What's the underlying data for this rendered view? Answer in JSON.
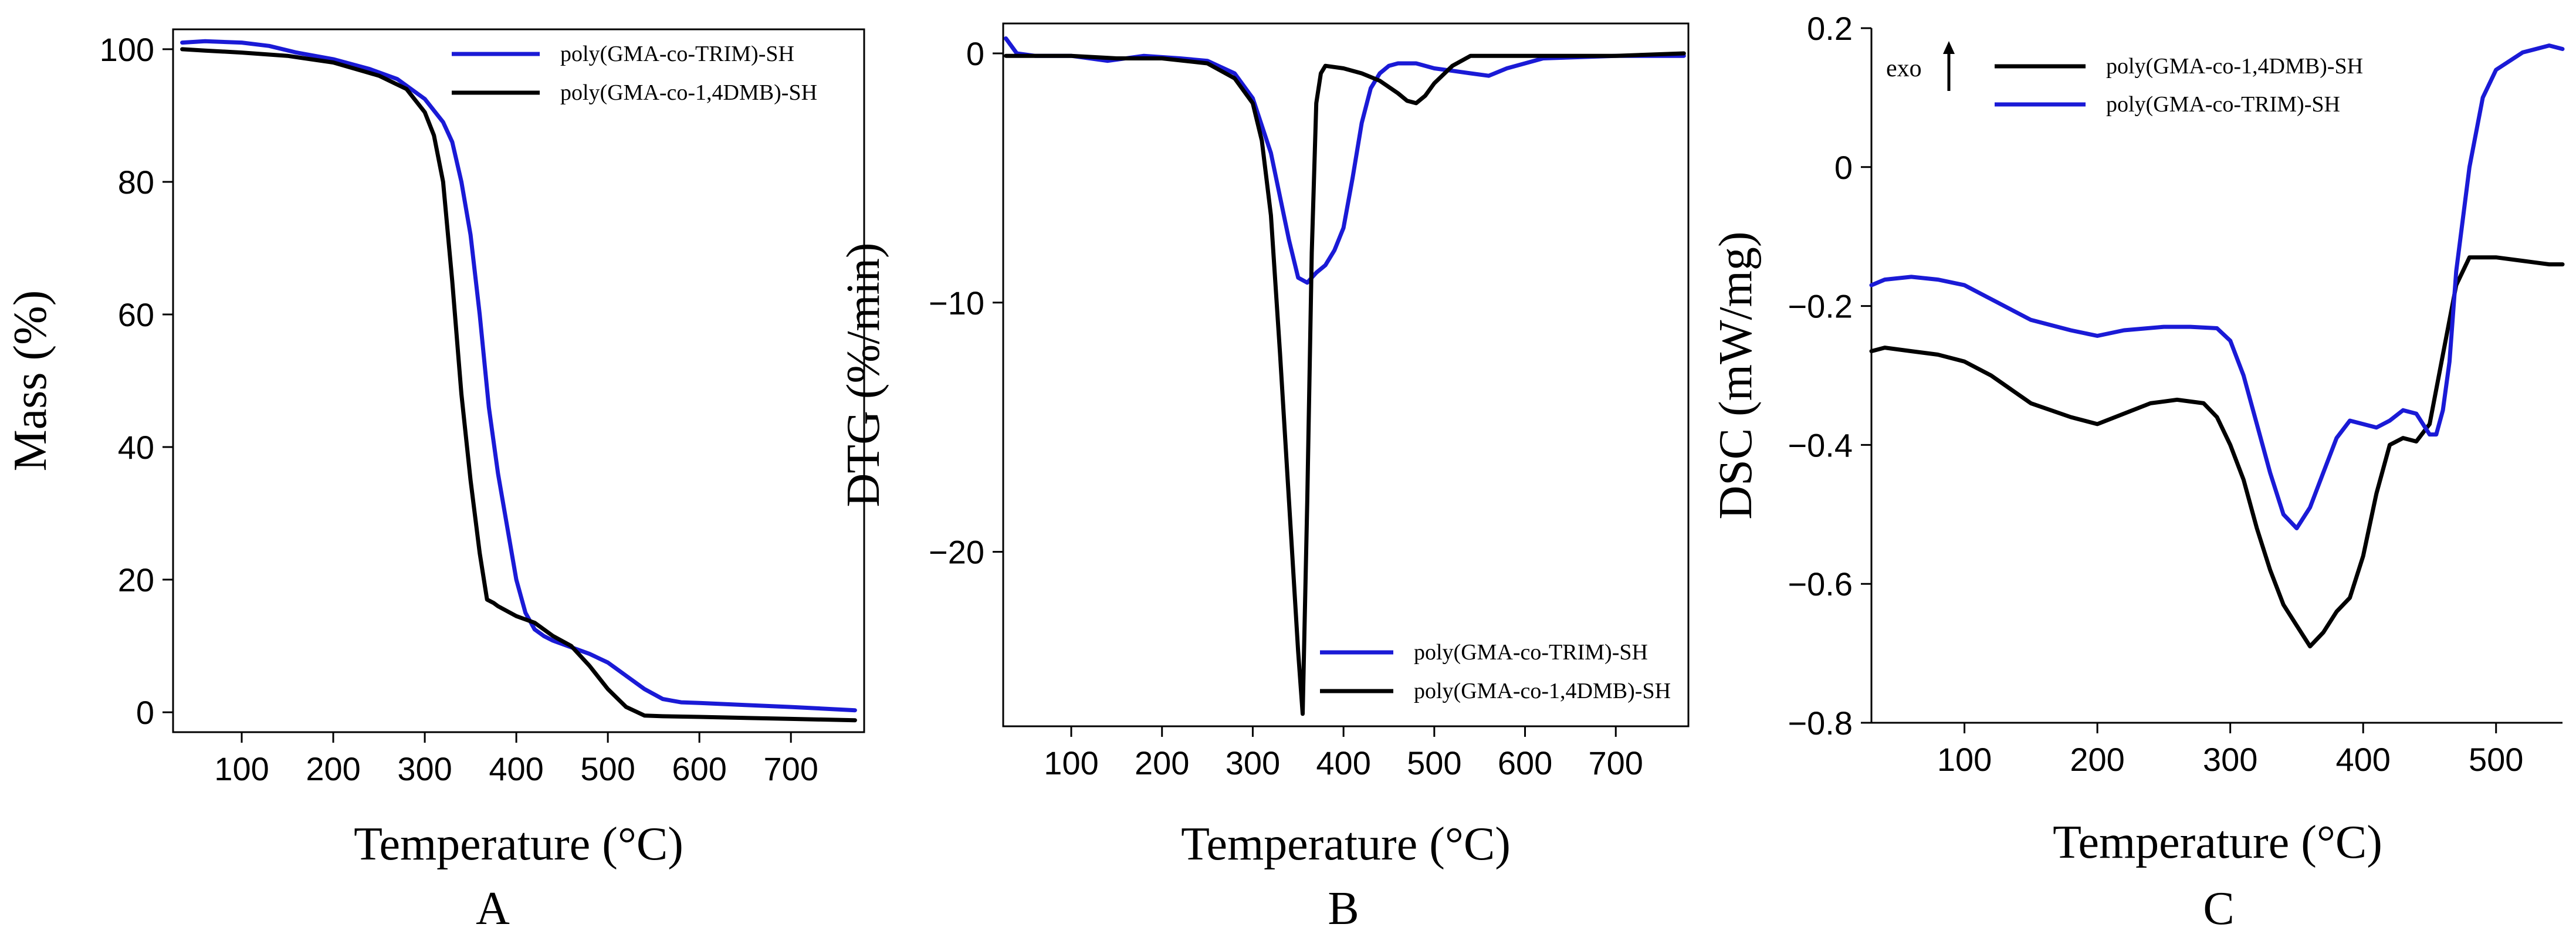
{
  "colors": {
    "trim": "#1a1ad6",
    "dmb": "#000000"
  },
  "chart_data": [
    {
      "type": "line",
      "panel_label": "A",
      "xlabel": "Temperature (°C)",
      "ylabel": "Mass (%)",
      "xlim": [
        25,
        780
      ],
      "ylim": [
        -3,
        103
      ],
      "xticks": [
        100,
        200,
        300,
        400,
        500,
        600,
        700
      ],
      "yticks": [
        0,
        20,
        40,
        60,
        80,
        100
      ],
      "legend_position": "top-right",
      "series": [
        {
          "name": "poly(GMA-co-TRIM)-SH",
          "color_key": "trim",
          "x": [
            35,
            60,
            100,
            130,
            160,
            200,
            240,
            270,
            300,
            320,
            330,
            340,
            350,
            360,
            370,
            380,
            390,
            400,
            410,
            420,
            430,
            440,
            460,
            480,
            500,
            520,
            540,
            560,
            580,
            600,
            650,
            700,
            770
          ],
          "y": [
            101,
            101.2,
            101,
            100.5,
            99.5,
            98.5,
            97,
            95.5,
            92.5,
            89,
            86,
            80,
            72,
            60,
            46,
            36,
            28,
            20,
            15,
            12.5,
            11.5,
            10.8,
            9.8,
            8.8,
            7.5,
            5.5,
            3.5,
            2,
            1.5,
            1.4,
            1.1,
            0.8,
            0.3
          ]
        },
        {
          "name": "poly(GMA-co-1,4DMB)-SH",
          "color_key": "dmb",
          "x": [
            35,
            60,
            100,
            150,
            200,
            250,
            280,
            300,
            310,
            320,
            330,
            340,
            350,
            360,
            368,
            375,
            380,
            400,
            420,
            440,
            460,
            480,
            500,
            520,
            540,
            560,
            600,
            700,
            770
          ],
          "y": [
            100,
            99.8,
            99.5,
            99,
            98,
            96,
            94,
            90.5,
            87,
            80,
            65,
            48,
            35,
            24,
            17,
            16.5,
            16,
            14.5,
            13.5,
            11.5,
            10,
            7,
            3.5,
            0.8,
            -0.5,
            -0.6,
            -0.7,
            -1,
            -1.2
          ]
        }
      ]
    },
    {
      "type": "line",
      "panel_label": "B",
      "xlabel": "Temperature (°C)",
      "ylabel": "DTG (%/min)",
      "xlim": [
        25,
        780
      ],
      "ylim": [
        -27,
        1.2
      ],
      "xticks": [
        100,
        200,
        300,
        400,
        500,
        600,
        700
      ],
      "yticks": [
        0,
        -10,
        -20
      ],
      "ytick_labels": [
        "0",
        "−10",
        "−20"
      ],
      "legend_position": "bottom-right",
      "series": [
        {
          "name": "poly(GMA-co-TRIM)-SH",
          "color_key": "trim",
          "x": [
            28,
            40,
            60,
            100,
            140,
            180,
            220,
            250,
            280,
            300,
            320,
            340,
            350,
            360,
            370,
            380,
            390,
            400,
            410,
            420,
            430,
            440,
            450,
            460,
            480,
            500,
            520,
            540,
            560,
            580,
            620,
            700,
            775
          ],
          "y": [
            0.6,
            0,
            -0.1,
            -0.1,
            -0.3,
            -0.1,
            -0.2,
            -0.3,
            -0.8,
            -1.8,
            -4,
            -7.5,
            -9,
            -9.2,
            -8.8,
            -8.5,
            -7.9,
            -7,
            -5,
            -2.8,
            -1.4,
            -0.8,
            -0.5,
            -0.4,
            -0.4,
            -0.6,
            -0.7,
            -0.8,
            -0.9,
            -0.6,
            -0.2,
            -0.1,
            -0.1
          ]
        },
        {
          "name": "poly(GMA-co-1,4DMB)-SH",
          "color_key": "dmb",
          "x": [
            28,
            60,
            100,
            150,
            200,
            250,
            280,
            300,
            310,
            320,
            330,
            340,
            350,
            355,
            360,
            365,
            370,
            375,
            380,
            400,
            420,
            440,
            460,
            470,
            480,
            490,
            500,
            520,
            540,
            560,
            600,
            700,
            775
          ],
          "y": [
            -0.1,
            -0.1,
            -0.1,
            -0.2,
            -0.2,
            -0.4,
            -1,
            -2,
            -3.5,
            -6.5,
            -12,
            -18,
            -24,
            -26.5,
            -18,
            -8,
            -2,
            -0.8,
            -0.5,
            -0.6,
            -0.8,
            -1.1,
            -1.6,
            -1.9,
            -2,
            -1.7,
            -1.2,
            -0.5,
            -0.1,
            -0.1,
            -0.1,
            -0.1,
            0
          ]
        }
      ]
    },
    {
      "type": "line",
      "panel_label": "C",
      "xlabel": "Temperature (°C)",
      "ylabel": "DSC (mW/mg)",
      "xlim": [
        30,
        550
      ],
      "ylim": [
        -0.8,
        0.2
      ],
      "xticks": [
        100,
        200,
        300,
        400,
        500
      ],
      "yticks": [
        0.2,
        0,
        -0.2,
        -0.4,
        -0.6,
        -0.8
      ],
      "ytick_labels": [
        "0.2",
        "0",
        "−0.2",
        "−0.4",
        "−0.6",
        "−0.8"
      ],
      "annotation": "exo",
      "legend_position": "top-left",
      "series": [
        {
          "name": "poly(GMA-co-1,4DMB)-SH",
          "color_key": "dmb",
          "x": [
            30,
            40,
            60,
            80,
            100,
            120,
            150,
            180,
            200,
            220,
            240,
            260,
            280,
            290,
            300,
            310,
            320,
            330,
            340,
            350,
            360,
            370,
            380,
            390,
            400,
            410,
            420,
            430,
            440,
            450,
            460,
            470,
            480,
            500,
            520,
            540,
            550
          ],
          "y": [
            -0.265,
            -0.26,
            -0.265,
            -0.27,
            -0.28,
            -0.3,
            -0.34,
            -0.36,
            -0.37,
            -0.355,
            -0.34,
            -0.335,
            -0.34,
            -0.36,
            -0.4,
            -0.45,
            -0.52,
            -0.58,
            -0.63,
            -0.66,
            -0.69,
            -0.67,
            -0.64,
            -0.62,
            -0.56,
            -0.47,
            -0.4,
            -0.39,
            -0.395,
            -0.37,
            -0.27,
            -0.17,
            -0.13,
            -0.13,
            -0.135,
            -0.14,
            -0.14
          ]
        },
        {
          "name": "poly(GMA-co-TRIM)-SH",
          "color_key": "trim",
          "x": [
            30,
            40,
            60,
            80,
            100,
            120,
            150,
            180,
            200,
            220,
            250,
            270,
            290,
            300,
            310,
            320,
            330,
            340,
            350,
            360,
            370,
            380,
            390,
            400,
            410,
            420,
            430,
            440,
            450,
            455,
            460,
            465,
            470,
            480,
            490,
            500,
            520,
            540,
            550
          ],
          "y": [
            -0.17,
            -0.162,
            -0.158,
            -0.162,
            -0.17,
            -0.19,
            -0.22,
            -0.235,
            -0.243,
            -0.235,
            -0.23,
            -0.23,
            -0.232,
            -0.25,
            -0.3,
            -0.37,
            -0.44,
            -0.5,
            -0.52,
            -0.49,
            -0.44,
            -0.39,
            -0.365,
            -0.37,
            -0.375,
            -0.365,
            -0.35,
            -0.355,
            -0.385,
            -0.385,
            -0.35,
            -0.28,
            -0.15,
            0.0,
            0.1,
            0.14,
            0.165,
            0.175,
            0.17
          ]
        }
      ]
    }
  ]
}
